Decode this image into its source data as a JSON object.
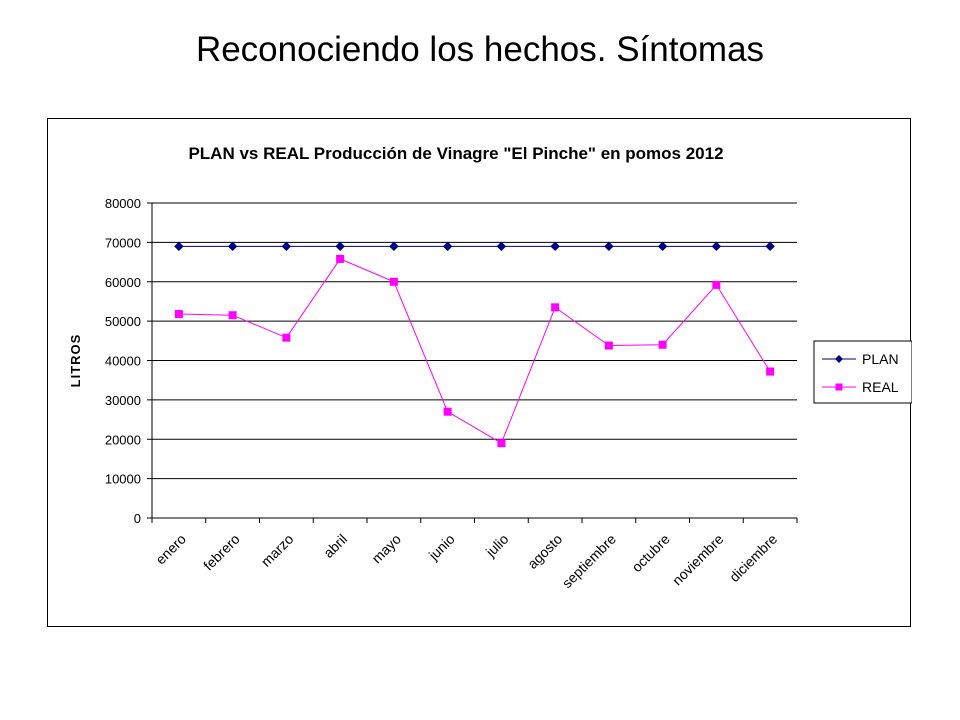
{
  "slide": {
    "title": "Reconociendo los hechos. Síntomas"
  },
  "chart_data": {
    "type": "line",
    "title": "PLAN vs REAL Producción de Vinagre \"El Pinche\" en pomos 2012",
    "xlabel": "",
    "ylabel": "LITROS",
    "ylim": [
      0,
      80000
    ],
    "yticks": [
      0,
      10000,
      20000,
      30000,
      40000,
      50000,
      60000,
      70000,
      80000
    ],
    "grid": true,
    "legend_position": "right",
    "categories": [
      "enero",
      "febrero",
      "marzo",
      "abril",
      "mayo",
      "junio",
      "julio",
      "agosto",
      "septiembre",
      "octubre",
      "noviembre",
      "diciembre"
    ],
    "series": [
      {
        "name": "PLAN",
        "color": "#000080",
        "marker": "diamond",
        "values": [
          69000,
          69000,
          69000,
          69000,
          69000,
          69000,
          69000,
          69000,
          69000,
          69000,
          69000,
          69000
        ]
      },
      {
        "name": "REAL",
        "color": "#ff00ff",
        "marker": "square",
        "values": [
          51800,
          51500,
          45800,
          65800,
          60000,
          27000,
          19000,
          53500,
          43800,
          44000,
          59200,
          37200
        ]
      }
    ]
  }
}
